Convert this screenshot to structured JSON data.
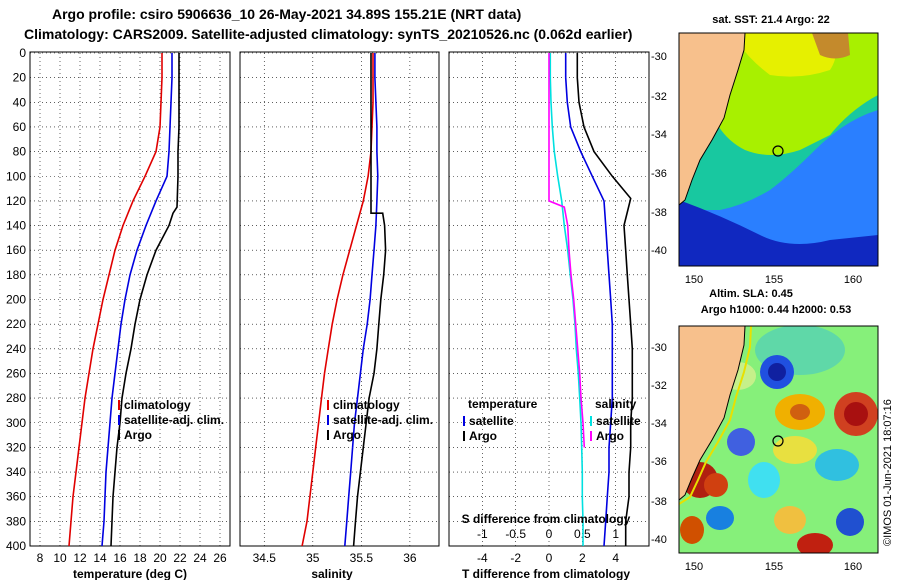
{
  "header": {
    "title_line1": "Argo profile: csiro 5906636_10 26-May-2021 34.89S 155.21E (NRT data)",
    "title_line2": "Climatology: CARS2009. Satellite-adjusted climatology: synTS_20210526.nc (0.062d earlier)"
  },
  "colors": {
    "climatology": "#e00000",
    "satellite": "#0000e0",
    "argo": "#000000",
    "sat_s": "#00e0e0",
    "argo_s_diff": "#ff00ff",
    "land": "#f7c08c"
  },
  "chart_data": [
    {
      "type": "line",
      "name": "temperature",
      "xlabel": "temperature (deg C)",
      "xlim": [
        7,
        27
      ],
      "xticks": [
        8,
        10,
        12,
        14,
        16,
        18,
        20,
        22,
        24,
        26
      ],
      "ylim": [
        0,
        400
      ],
      "yticks": [
        0,
        20,
        40,
        60,
        80,
        100,
        120,
        140,
        160,
        180,
        200,
        220,
        240,
        260,
        280,
        300,
        320,
        340,
        360,
        380,
        400
      ],
      "legend": [
        "climatology",
        "satellite-adj. clim.",
        "Argo"
      ],
      "series": [
        {
          "name": "climatology",
          "color": "#e00000",
          "x": [
            20.2,
            20.2,
            20.1,
            20.0,
            19.6,
            18.5,
            17.3,
            16.3,
            15.5,
            14.9,
            14.3,
            13.8,
            13.3,
            12.9,
            12.5,
            12.2,
            11.9,
            11.6,
            11.3,
            11.1,
            10.9
          ],
          "y": [
            0,
            20,
            40,
            60,
            80,
            100,
            120,
            140,
            160,
            180,
            200,
            220,
            240,
            260,
            280,
            300,
            320,
            340,
            360,
            380,
            400
          ]
        },
        {
          "name": "satellite-adj. clim.",
          "color": "#0000e0",
          "x": [
            21.2,
            21.2,
            21.1,
            21.0,
            20.9,
            20.7,
            19.6,
            18.6,
            17.7,
            17.0,
            16.5,
            16.1,
            15.8,
            15.5,
            15.2,
            15.0,
            14.8,
            14.6,
            14.5,
            14.4,
            14.2
          ],
          "y": [
            0,
            20,
            40,
            60,
            80,
            100,
            120,
            140,
            160,
            180,
            200,
            220,
            240,
            260,
            280,
            300,
            320,
            340,
            360,
            380,
            400
          ]
        },
        {
          "name": "Argo",
          "color": "#000000",
          "x": [
            21.9,
            21.9,
            21.9,
            21.9,
            21.8,
            21.8,
            21.7,
            21.3,
            20.9,
            19.6,
            18.7,
            18.0,
            17.5,
            17.1,
            16.6,
            16.2,
            16.0,
            15.7,
            15.5,
            15.3,
            15.1
          ],
          "y": [
            0,
            20,
            40,
            60,
            80,
            100,
            125,
            130,
            140,
            160,
            180,
            200,
            220,
            240,
            260,
            280,
            300,
            320,
            340,
            360,
            400
          ]
        }
      ]
    },
    {
      "type": "line",
      "name": "salinity",
      "xlabel": "salinity",
      "xlim": [
        34.25,
        36.3
      ],
      "xticks": [
        34.5,
        35,
        35.5,
        36
      ],
      "xticklabels": [
        "34.5",
        "35",
        "35.5",
        "36"
      ],
      "ylim": [
        0,
        400
      ],
      "legend": [
        "climatology",
        "satellite-adj. clim.",
        "Argo"
      ],
      "series": [
        {
          "name": "climatology",
          "color": "#e00000",
          "x": [
            35.62,
            35.62,
            35.62,
            35.61,
            35.6,
            35.57,
            35.52,
            35.45,
            35.38,
            35.31,
            35.25,
            35.2,
            35.16,
            35.12,
            35.09,
            35.06,
            35.03,
            35.0,
            34.97,
            34.94,
            34.89
          ],
          "y": [
            0,
            20,
            40,
            60,
            80,
            100,
            120,
            140,
            160,
            180,
            200,
            220,
            240,
            260,
            280,
            300,
            320,
            340,
            360,
            380,
            400
          ]
        },
        {
          "name": "satellite-adj. clim.",
          "color": "#0000e0",
          "x": [
            35.64,
            35.64,
            35.65,
            35.66,
            35.66,
            35.67,
            35.66,
            35.65,
            35.63,
            35.61,
            35.59,
            35.56,
            35.52,
            35.49,
            35.46,
            35.43,
            35.41,
            35.39,
            35.37,
            35.35,
            35.33
          ],
          "y": [
            0,
            20,
            40,
            60,
            80,
            100,
            120,
            140,
            160,
            180,
            200,
            220,
            240,
            260,
            280,
            300,
            320,
            340,
            360,
            380,
            400
          ]
        },
        {
          "name": "Argo",
          "color": "#000000",
          "x": [
            35.6,
            35.6,
            35.6,
            35.6,
            35.6,
            35.6,
            35.6,
            35.6,
            35.72,
            35.74,
            35.75,
            35.73,
            35.7,
            35.68,
            35.66,
            35.63,
            35.58,
            35.55,
            35.52,
            35.49,
            35.46,
            35.44,
            35.42
          ],
          "y": [
            0,
            20,
            40,
            60,
            80,
            100,
            120,
            130,
            130,
            140,
            160,
            180,
            200,
            220,
            240,
            260,
            280,
            300,
            320,
            340,
            360,
            380,
            400
          ]
        }
      ]
    },
    {
      "type": "line",
      "name": "difference from climatology",
      "xlabel": "T difference from climatology",
      "x2label": "S difference from climatology",
      "xlim": [
        -6,
        6
      ],
      "xticks": [
        -4,
        -2,
        0,
        2,
        4
      ],
      "x2ticks": [
        -1,
        -0.5,
        0,
        0.5,
        1
      ],
      "x2ticklabels": [
        "-1",
        "-0.5",
        "0",
        "0.5",
        "1"
      ],
      "ylim": [
        0,
        400
      ],
      "legend_temperature": {
        "title": "temperature",
        "items": [
          "satellite",
          "Argo"
        ]
      },
      "legend_salinity": {
        "title": "salinity",
        "items": [
          "satellite",
          "Argo"
        ]
      },
      "series": [
        {
          "name": "T satellite",
          "color": "#0000e0",
          "x": [
            1.0,
            1.0,
            1.1,
            1.3,
            1.9,
            2.6,
            3.3,
            3.4,
            3.5,
            3.6,
            3.7,
            3.8,
            3.8,
            3.8,
            3.8,
            3.7,
            3.6,
            3.6,
            3.5,
            3.4,
            3.3
          ],
          "y": [
            0,
            20,
            40,
            60,
            80,
            100,
            120,
            140,
            160,
            180,
            200,
            220,
            240,
            260,
            280,
            300,
            320,
            340,
            360,
            380,
            400
          ]
        },
        {
          "name": "T Argo",
          "color": "#000000",
          "x": [
            1.7,
            1.7,
            1.8,
            2.1,
            2.7,
            3.8,
            4.9,
            4.5,
            4.6,
            4.7,
            4.8,
            4.9,
            5.0,
            5.0,
            5.0,
            4.9,
            4.9,
            4.8,
            4.8,
            4.6,
            4.6
          ],
          "y": [
            0,
            20,
            40,
            60,
            80,
            100,
            118,
            140,
            160,
            180,
            200,
            220,
            240,
            260,
            280,
            300,
            320,
            340,
            360,
            380,
            400
          ]
        },
        {
          "name": "S satellite",
          "color": "#00e0e0",
          "x": [
            0.02,
            0.02,
            0.03,
            0.05,
            0.08,
            0.13,
            0.19,
            0.23,
            0.28,
            0.32,
            0.36,
            0.39,
            0.41,
            0.44,
            0.46,
            0.48,
            0.49,
            0.5,
            0.5,
            0.51,
            0.51
          ],
          "y": [
            0,
            20,
            40,
            60,
            80,
            100,
            120,
            140,
            160,
            180,
            200,
            220,
            240,
            260,
            280,
            300,
            320,
            340,
            360,
            380,
            400
          ]
        },
        {
          "name": "S Argo",
          "color": "#ff00ff",
          "x": [
            0.0,
            0.0,
            0.0,
            0.0,
            0.0,
            0.0,
            0.0,
            0.23,
            0.28,
            0.3,
            0.33,
            0.37,
            0.4,
            0.43,
            0.46,
            0.48,
            0.51,
            0.53
          ],
          "y": [
            0,
            20,
            40,
            60,
            80,
            100,
            120,
            125,
            140,
            160,
            180,
            200,
            220,
            240,
            260,
            280,
            300,
            320
          ]
        }
      ]
    }
  ],
  "maps": {
    "sst": {
      "title": "sat. SST: 21.4 Argo: 22",
      "lat_ticks": [
        "-30",
        "-32",
        "-34",
        "-36",
        "-38",
        "-40"
      ],
      "lon_ticks": [
        "150",
        "155",
        "160"
      ]
    },
    "sla": {
      "title_line1": "Altim. SLA: 0.45",
      "title_line2": "Argo h1000: 0.44 h2000: 0.53",
      "lat_ticks": [
        "-30",
        "-32",
        "-34",
        "-36",
        "-38",
        "-40"
      ],
      "lon_ticks": [
        "150",
        "155",
        "160"
      ]
    }
  },
  "footer": {
    "credit": "©IMOS 01-Jun-2021 18:07:16"
  }
}
